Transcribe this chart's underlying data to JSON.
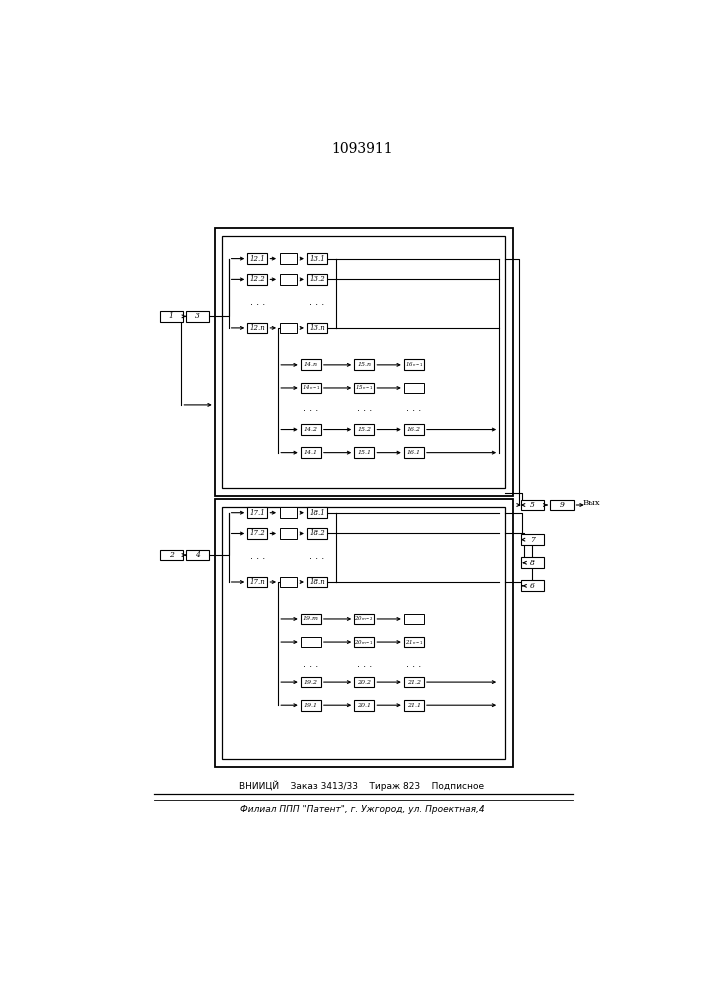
{
  "title": "1093911",
  "footer_line1": "ВНИИЦЙ    Заказ 3413/33    Тираж 823    Подписное",
  "footer_line2": "Филиал ППП \"Патент\", г. Ужгород, ул. Проектная,4",
  "bg_color": "#ffffff"
}
